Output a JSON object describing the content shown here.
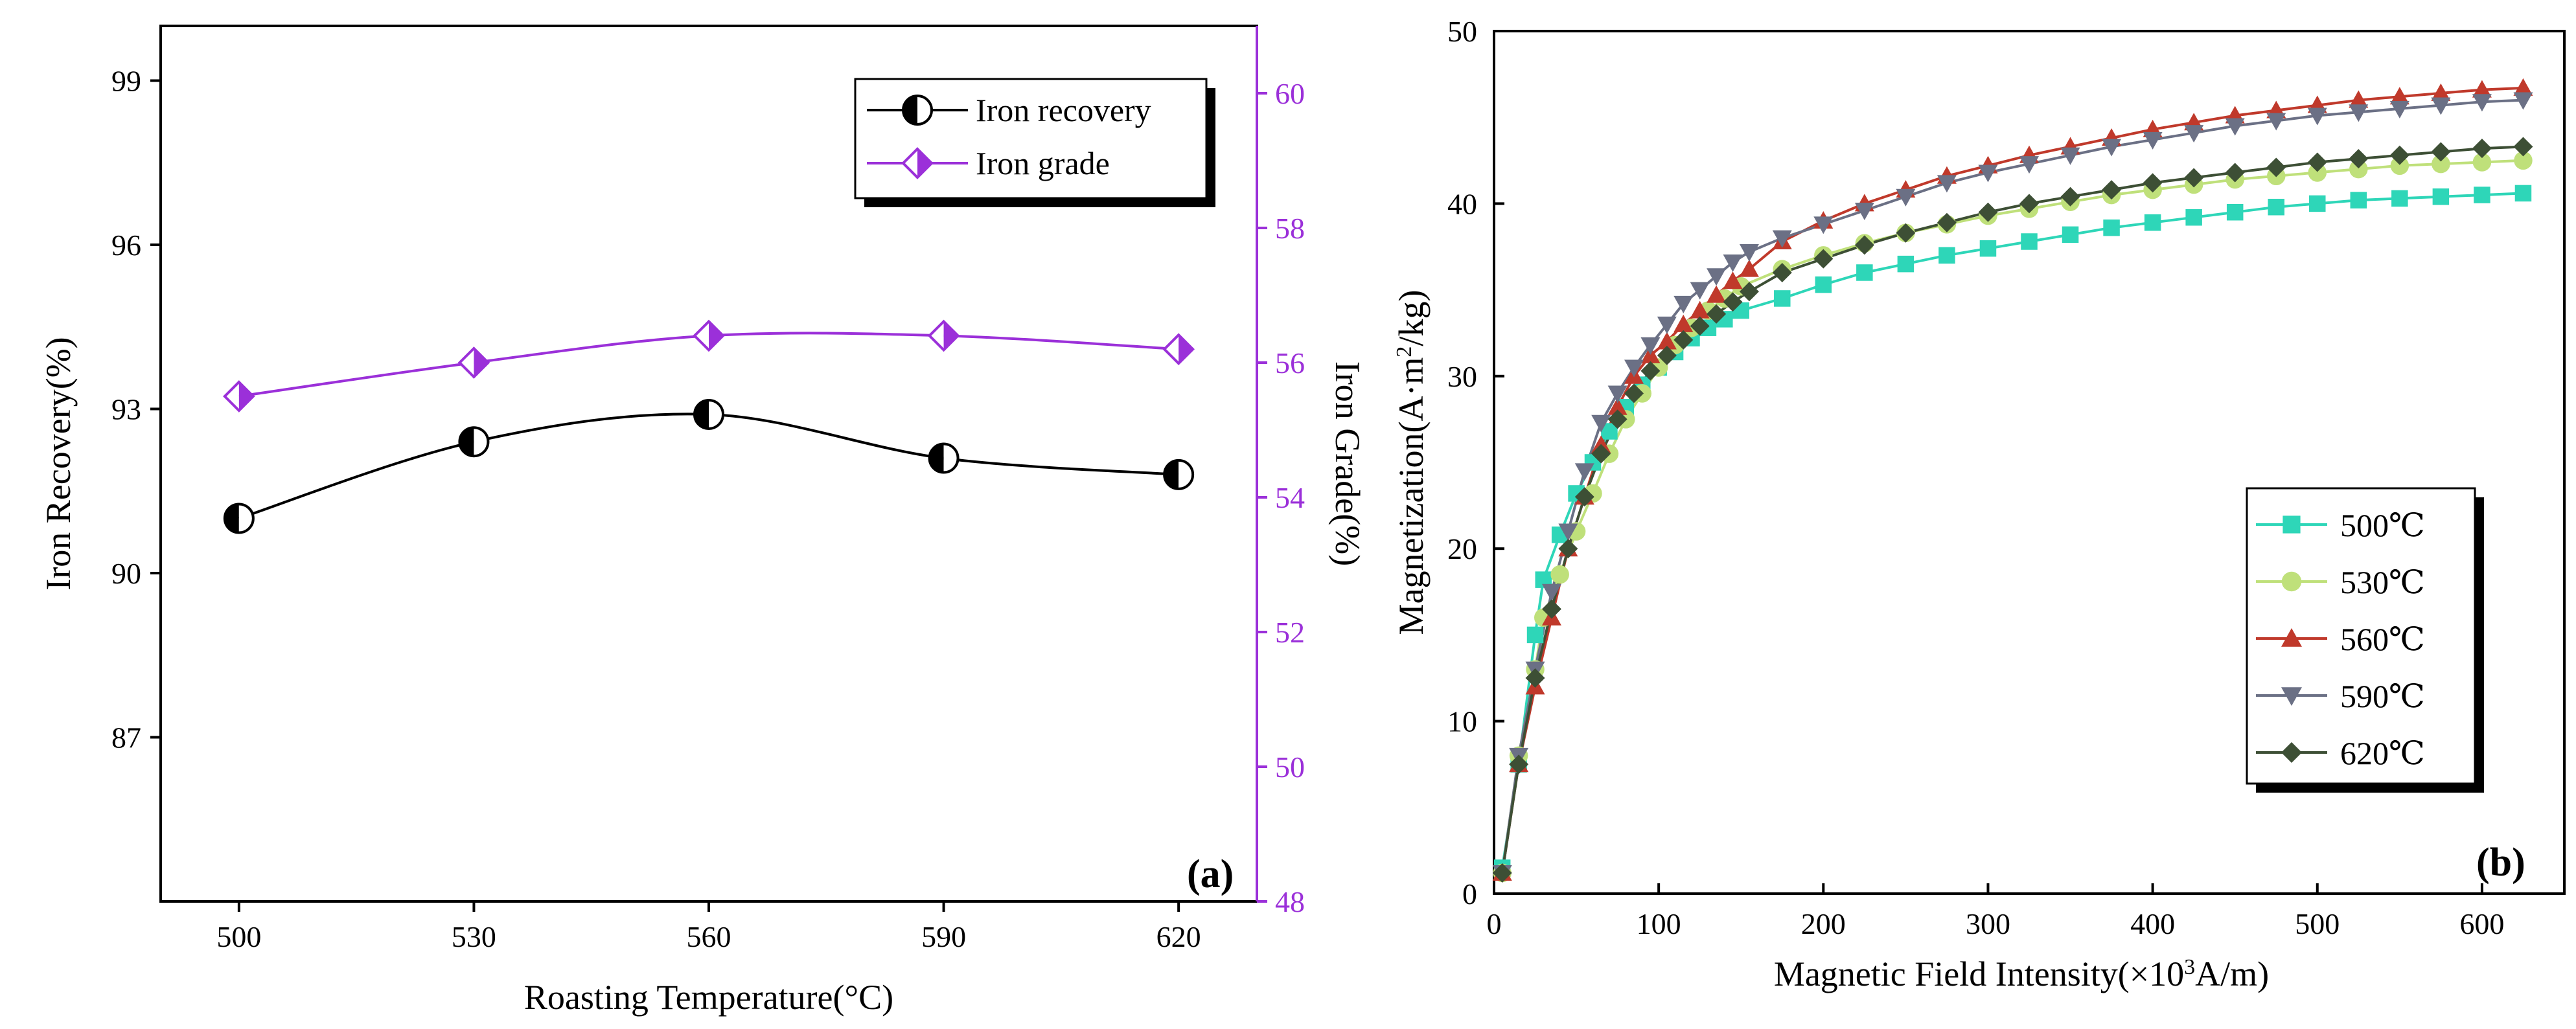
{
  "chart_data": [
    {
      "type": "line",
      "panel_label": "(a)",
      "xlabel": "Roasting Temperature(°C)",
      "ylabel": "Iron Recovery(%)",
      "y2label": "Iron Grade(%)",
      "x": [
        500,
        530,
        560,
        590,
        620
      ],
      "xticks": [
        500,
        530,
        560,
        590,
        620
      ],
      "xlim": [
        490,
        630
      ],
      "ylim": [
        84,
        100
      ],
      "yticks": [
        87,
        90,
        93,
        96,
        99
      ],
      "y2lim": [
        48,
        61
      ],
      "y2ticks": [
        48,
        50,
        52,
        54,
        56,
        58,
        60
      ],
      "legend_position": "top-right",
      "series": [
        {
          "name": "Iron recovery",
          "axis": "left",
          "color": "#000000",
          "marker": "half-circle",
          "values": [
            91.0,
            92.4,
            92.9,
            92.1,
            91.8
          ]
        },
        {
          "name": "Iron grade",
          "axis": "right",
          "color": "#9b30d9",
          "marker": "half-diamond",
          "values": [
            55.5,
            56.0,
            56.4,
            56.4,
            56.2
          ]
        }
      ]
    },
    {
      "type": "line",
      "panel_label": "(b)",
      "xlabel_parts": [
        "Magnetic Field Intensity(×10",
        "3",
        "A/m)"
      ],
      "ylabel_parts": [
        "Magnetization(A·m",
        "2",
        "/kg)"
      ],
      "xlim": [
        0,
        650
      ],
      "xticks": [
        0,
        100,
        200,
        300,
        400,
        500,
        600
      ],
      "ylim": [
        0,
        50
      ],
      "yticks": [
        0,
        10,
        20,
        30,
        40,
        50
      ],
      "legend_position": "center-right",
      "series": [
        {
          "name": "500℃",
          "color": "#2ed6b8",
          "marker": "square",
          "points": [
            [
              5,
              1.5
            ],
            [
              15,
              7.5
            ],
            [
              25,
              15
            ],
            [
              30,
              18.2
            ],
            [
              40,
              20.8
            ],
            [
              50,
              23.2
            ],
            [
              60,
              25
            ],
            [
              70,
              26.8
            ],
            [
              80,
              28.2
            ],
            [
              90,
              29.5
            ],
            [
              100,
              30.5
            ],
            [
              110,
              31.4
            ],
            [
              120,
              32.2
            ],
            [
              130,
              32.8
            ],
            [
              140,
              33.3
            ],
            [
              150,
              33.8
            ],
            [
              175,
              34.5
            ],
            [
              200,
              35.3
            ],
            [
              225,
              36
            ],
            [
              250,
              36.5
            ],
            [
              275,
              37
            ],
            [
              300,
              37.4
            ],
            [
              325,
              37.8
            ],
            [
              350,
              38.2
            ],
            [
              375,
              38.6
            ],
            [
              400,
              38.9
            ],
            [
              425,
              39.2
            ],
            [
              450,
              39.5
            ],
            [
              475,
              39.8
            ],
            [
              500,
              40
            ],
            [
              525,
              40.2
            ],
            [
              550,
              40.3
            ],
            [
              575,
              40.4
            ],
            [
              600,
              40.5
            ],
            [
              625,
              40.6
            ]
          ]
        },
        {
          "name": "530℃",
          "color": "#bfe07a",
          "marker": "circle",
          "points": [
            [
              5,
              1.2
            ],
            [
              15,
              8
            ],
            [
              25,
              13
            ],
            [
              30,
              16
            ],
            [
              40,
              18.5
            ],
            [
              50,
              21
            ],
            [
              60,
              23.2
            ],
            [
              70,
              25.5
            ],
            [
              80,
              27.5
            ],
            [
              90,
              29
            ],
            [
              100,
              30.5
            ],
            [
              110,
              31.8
            ],
            [
              120,
              32.8
            ],
            [
              130,
              33.8
            ],
            [
              140,
              34.5
            ],
            [
              150,
              35.2
            ],
            [
              175,
              36.2
            ],
            [
              200,
              37
            ],
            [
              225,
              37.7
            ],
            [
              250,
              38.3
            ],
            [
              275,
              38.8
            ],
            [
              300,
              39.3
            ],
            [
              325,
              39.7
            ],
            [
              350,
              40.1
            ],
            [
              375,
              40.5
            ],
            [
              400,
              40.8
            ],
            [
              425,
              41.1
            ],
            [
              450,
              41.4
            ],
            [
              475,
              41.6
            ],
            [
              500,
              41.8
            ],
            [
              525,
              42
            ],
            [
              550,
              42.2
            ],
            [
              575,
              42.3
            ],
            [
              600,
              42.4
            ],
            [
              625,
              42.5
            ]
          ]
        },
        {
          "name": "560℃",
          "color": "#c0392b",
          "marker": "triangle-up",
          "points": [
            [
              5,
              1.2
            ],
            [
              15,
              7.5
            ],
            [
              25,
              12
            ],
            [
              35,
              16
            ],
            [
              45,
              20
            ],
            [
              55,
              23
            ],
            [
              65,
              26
            ],
            [
              75,
              28.2
            ],
            [
              85,
              30
            ],
            [
              95,
              31.2
            ],
            [
              105,
              32
            ],
            [
              115,
              33
            ],
            [
              125,
              33.8
            ],
            [
              135,
              34.7
            ],
            [
              145,
              35.5
            ],
            [
              155,
              36.2
            ],
            [
              175,
              37.8
            ],
            [
              200,
              39
            ],
            [
              225,
              40
            ],
            [
              250,
              40.8
            ],
            [
              275,
              41.6
            ],
            [
              300,
              42.2
            ],
            [
              325,
              42.8
            ],
            [
              350,
              43.3
            ],
            [
              375,
              43.8
            ],
            [
              400,
              44.3
            ],
            [
              425,
              44.7
            ],
            [
              450,
              45.1
            ],
            [
              475,
              45.4
            ],
            [
              500,
              45.7
            ],
            [
              525,
              46
            ],
            [
              550,
              46.2
            ],
            [
              575,
              46.4
            ],
            [
              600,
              46.6
            ],
            [
              625,
              46.7
            ]
          ]
        },
        {
          "name": "590℃",
          "color": "#6b7085",
          "marker": "triangle-down",
          "points": [
            [
              5,
              1.2
            ],
            [
              15,
              8
            ],
            [
              25,
              13
            ],
            [
              35,
              17.5
            ],
            [
              45,
              21
            ],
            [
              55,
              24.5
            ],
            [
              65,
              27.3
            ],
            [
              75,
              29
            ],
            [
              85,
              30.5
            ],
            [
              95,
              31.8
            ],
            [
              105,
              33
            ],
            [
              115,
              34.2
            ],
            [
              125,
              35
            ],
            [
              135,
              35.8
            ],
            [
              145,
              36.6
            ],
            [
              155,
              37.2
            ],
            [
              175,
              38
            ],
            [
              200,
              38.8
            ],
            [
              225,
              39.6
            ],
            [
              250,
              40.4
            ],
            [
              275,
              41.2
            ],
            [
              300,
              41.8
            ],
            [
              325,
              42.3
            ],
            [
              350,
              42.8
            ],
            [
              375,
              43.3
            ],
            [
              400,
              43.7
            ],
            [
              425,
              44.1
            ],
            [
              450,
              44.5
            ],
            [
              475,
              44.8
            ],
            [
              500,
              45.1
            ],
            [
              525,
              45.3
            ],
            [
              550,
              45.5
            ],
            [
              575,
              45.7
            ],
            [
              600,
              45.9
            ],
            [
              625,
              46
            ]
          ]
        },
        {
          "name": "620℃",
          "color": "#3d4f35",
          "marker": "diamond",
          "points": [
            [
              5,
              1.2
            ],
            [
              15,
              7.5
            ],
            [
              25,
              12.5
            ],
            [
              35,
              16.5
            ],
            [
              45,
              20
            ],
            [
              55,
              23
            ],
            [
              65,
              25.5
            ],
            [
              75,
              27.5
            ],
            [
              85,
              29
            ],
            [
              95,
              30.3
            ],
            [
              105,
              31.2
            ],
            [
              115,
              32.1
            ],
            [
              125,
              32.9
            ],
            [
              135,
              33.6
            ],
            [
              145,
              34.3
            ],
            [
              155,
              34.9
            ],
            [
              175,
              36
            ],
            [
              200,
              36.8
            ],
            [
              225,
              37.6
            ],
            [
              250,
              38.3
            ],
            [
              275,
              38.9
            ],
            [
              300,
              39.5
            ],
            [
              325,
              40
            ],
            [
              350,
              40.4
            ],
            [
              375,
              40.8
            ],
            [
              400,
              41.2
            ],
            [
              425,
              41.5
            ],
            [
              450,
              41.8
            ],
            [
              475,
              42.1
            ],
            [
              500,
              42.4
            ],
            [
              525,
              42.6
            ],
            [
              550,
              42.8
            ],
            [
              575,
              43
            ],
            [
              600,
              43.2
            ],
            [
              625,
              43.3
            ]
          ]
        }
      ]
    }
  ]
}
